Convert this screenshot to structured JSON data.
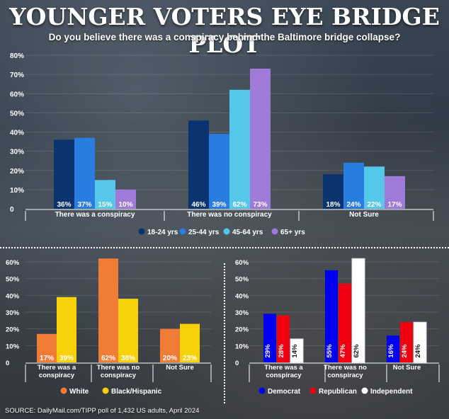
{
  "title": "YOUNGER VOTERS EYE BRIDGE PLOT",
  "subtitle": "Do you believe there was a conspiracy behind the Baltimore bridge collapse?",
  "source": "SOURCE: DailyMail.com/TIPP poll of 1,432 US adults, April 2024",
  "colors": {
    "age_18_24": "#0a3470",
    "age_25_44": "#2a7de0",
    "age_45_64": "#55c7e8",
    "age_65_plus": "#a07ad8",
    "white": "#f07c36",
    "black_hispanic": "#f7d10a",
    "democrat": "#0000f0",
    "republican": "#f00010",
    "independent": "#ffffff"
  },
  "chart_data": [
    {
      "id": "age",
      "type": "bar",
      "categories": [
        "There was a conspiracy",
        "There was no conspiracy",
        "Not Sure"
      ],
      "series": [
        {
          "name": "18-24 yrs",
          "values": [
            36,
            46,
            18
          ],
          "labels": [
            "36%",
            "46%",
            "18%"
          ]
        },
        {
          "name": "25-44 yrs",
          "values": [
            37,
            39,
            24
          ],
          "labels": [
            "37%",
            "39%",
            "24%"
          ]
        },
        {
          "name": "45-64 yrs",
          "values": [
            15,
            62,
            22
          ],
          "labels": [
            "15%",
            "62%",
            "22%"
          ]
        },
        {
          "name": "65+ yrs",
          "values": [
            10,
            73,
            17
          ],
          "labels": [
            "10%",
            "73%",
            "17%"
          ]
        }
      ],
      "yticks": [
        "0",
        "10%",
        "20%",
        "30%",
        "40%",
        "50%",
        "60%",
        "70%",
        "80%"
      ],
      "ylim": [
        0,
        80
      ]
    },
    {
      "id": "race",
      "type": "bar",
      "categories": [
        [
          "There was a",
          "conspiracy"
        ],
        [
          "There was no",
          "conspiracy"
        ],
        [
          "Not Sure"
        ]
      ],
      "series": [
        {
          "name": "White",
          "values": [
            17,
            62,
            20
          ],
          "labels": [
            "17%",
            "62%",
            "20%"
          ]
        },
        {
          "name": "Black/Hispanic",
          "values": [
            39,
            38,
            23
          ],
          "labels": [
            "39%",
            "38%",
            "23%"
          ]
        }
      ],
      "yticks": [
        "0",
        "10%",
        "20%",
        "30%",
        "40%",
        "50%",
        "60%"
      ],
      "ylim": [
        0,
        60
      ]
    },
    {
      "id": "party",
      "type": "bar",
      "categories": [
        [
          "There was a",
          "conspiracy"
        ],
        [
          "There was no",
          "conspiracy"
        ],
        [
          "Not Sure"
        ]
      ],
      "series": [
        {
          "name": "Democrat",
          "values": [
            29,
            55,
            16
          ],
          "labels": [
            "29%",
            "55%",
            "16%"
          ]
        },
        {
          "name": "Republican",
          "values": [
            28,
            47,
            24
          ],
          "labels": [
            "28%",
            "47%",
            "24%"
          ]
        },
        {
          "name": "Independent",
          "values": [
            14,
            62,
            24
          ],
          "labels": [
            "14%",
            "62%",
            "24%"
          ]
        }
      ],
      "yticks": [
        "0",
        "10%",
        "20%",
        "30%",
        "40%",
        "50%",
        "60%"
      ],
      "ylim": [
        0,
        60
      ]
    }
  ]
}
